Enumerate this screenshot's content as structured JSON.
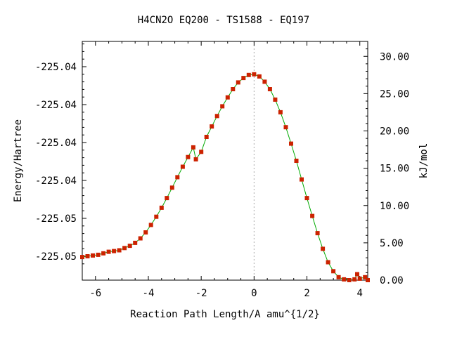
{
  "chart_data": {
    "type": "scatter",
    "title": "H4CN2O   EQ200 - TS1588 - EQ197",
    "xlabel": "Reaction Path Length/A amu^{1/2}",
    "ylabel": "Energy/Hartree",
    "y2label": "kJ/mol",
    "xlim": [
      -6.5,
      4.3
    ],
    "y2lim": [
      0.0,
      32.0
    ],
    "x_ticks": [
      -6,
      -4,
      -2,
      0,
      2,
      4
    ],
    "x_tick_labels": [
      "-6",
      "-4",
      "-2",
      "0",
      "2",
      "4"
    ],
    "y_tick_labels": [
      "-225.05",
      "-225.05",
      "-225.04",
      "-225.04",
      "-225.04",
      "-225.04"
    ],
    "y2_ticks": [
      0,
      5,
      10,
      15,
      20,
      25,
      30
    ],
    "y2_tick_labels": [
      "0.00",
      "5.00",
      "10.00",
      "15.00",
      "20.00",
      "25.00",
      "30.00"
    ],
    "ts_marker_x": 0,
    "grid": false,
    "colors": {
      "points": "#cc2200",
      "line": "#00aa00",
      "ts_line": "#aaaaaa"
    },
    "series": [
      {
        "x": [
          -6.5,
          -6.3,
          -6.1,
          -5.9,
          -5.7,
          -5.5,
          -5.3,
          -5.1,
          -4.9,
          -4.7,
          -4.5,
          -4.3,
          -4.1,
          -3.9,
          -3.7,
          -3.5,
          -3.3,
          -3.1,
          -2.9,
          -2.7,
          -2.5,
          -2.3,
          -2.2,
          -2.0,
          -1.8,
          -1.6,
          -1.4,
          -1.2,
          -1.0,
          -0.8,
          -0.6,
          -0.4,
          -0.2,
          0.0,
          0.2,
          0.4,
          0.6,
          0.8,
          1.0,
          1.2,
          1.4,
          1.6,
          1.8,
          2.0,
          2.2,
          2.4,
          2.6,
          2.8,
          3.0,
          3.2,
          3.4,
          3.6,
          3.8,
          3.9,
          4.0,
          4.2,
          4.3
        ],
        "y": [
          3.1,
          3.2,
          3.3,
          3.4,
          3.6,
          3.8,
          3.9,
          4.0,
          4.3,
          4.6,
          5.0,
          5.6,
          6.4,
          7.4,
          8.5,
          9.7,
          11.0,
          12.4,
          13.8,
          15.2,
          16.5,
          17.8,
          16.2,
          17.2,
          19.2,
          20.6,
          22.0,
          23.3,
          24.5,
          25.6,
          26.5,
          27.1,
          27.5,
          27.6,
          27.3,
          26.6,
          25.6,
          24.2,
          22.5,
          20.5,
          18.3,
          16.0,
          13.5,
          11.0,
          8.6,
          6.3,
          4.2,
          2.4,
          1.2,
          0.4,
          0.1,
          0.0,
          0.1,
          0.8,
          0.2,
          0.4,
          0.0
        ]
      }
    ]
  }
}
